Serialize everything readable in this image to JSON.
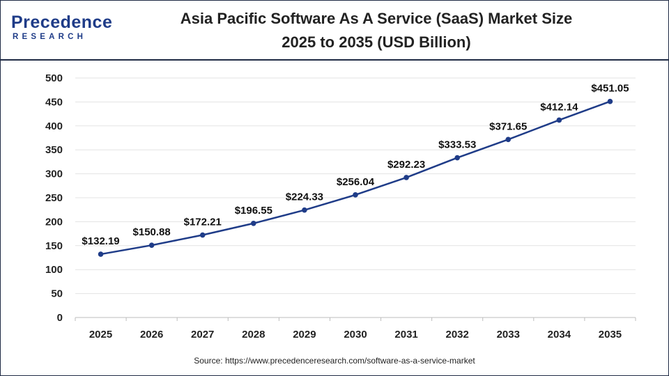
{
  "brand": {
    "logo_main": "Precedence",
    "logo_sub": "RESEARCH",
    "accent_color": "#1f3c88"
  },
  "header": {
    "title_line1": "Asia Pacific Software As A Service (SaaS) Market Size",
    "title_line2": "2025 to 2035 (USD Billion)"
  },
  "footer": {
    "source": "Source: https://www.precedenceresearch.com/software-as-a-service-market"
  },
  "chart_data": {
    "type": "line",
    "title": "Asia Pacific Software As A Service (SaaS) Market Size 2025 to 2035 (USD Billion)",
    "xlabel": "",
    "ylabel": "",
    "categories": [
      "2025",
      "2026",
      "2027",
      "2028",
      "2029",
      "2030",
      "2031",
      "2032",
      "2033",
      "2034",
      "2035"
    ],
    "series": [
      {
        "values": [
          132.19,
          150.88,
          172.21,
          196.55,
          224.33,
          256.04,
          292.23,
          333.53,
          371.65,
          412.14,
          451.05
        ],
        "labels": [
          "$132.19",
          "$150.88",
          "$172.21",
          "$196.55",
          "$224.33",
          "$256.04",
          "$292.23",
          "$333.53",
          "$371.65",
          "$412.14",
          "$451.05"
        ],
        "color": "#1f3c88"
      }
    ],
    "ylim": [
      0,
      500
    ],
    "yticks": [
      0,
      50,
      100,
      150,
      200,
      250,
      300,
      350,
      400,
      450,
      500
    ],
    "grid": true,
    "legend": "none"
  }
}
